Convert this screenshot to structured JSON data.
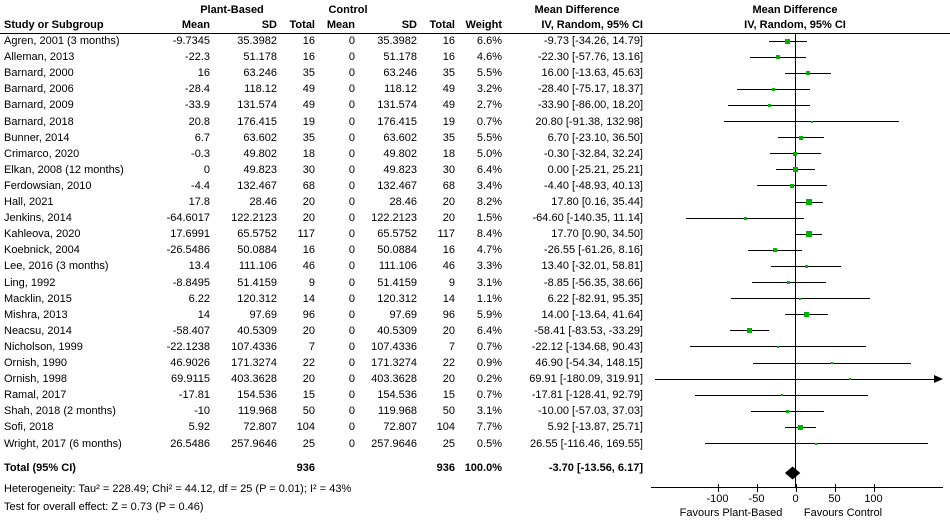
{
  "header": {
    "study_col": "Study or Subgroup",
    "group_plant": "Plant-Based",
    "group_control": "Control",
    "col_mean": "Mean",
    "col_sd": "SD",
    "col_total": "Total",
    "col_weight": "Weight",
    "md_title": "Mean Difference",
    "md_subtitle": "IV, Random, 95% CI"
  },
  "chart_data": {
    "type": "forest",
    "title": "Mean Difference IV, Random, 95% CI",
    "marker_color": "#00b300",
    "diamond_color": "#000000",
    "studies": [
      {
        "name": "Agren, 2001 (3 months)",
        "pb_mean": "-9.7345",
        "pb_sd": "35.3982",
        "pb_total": "16",
        "c_mean": "0",
        "c_sd": "35.3982",
        "c_total": "16",
        "weight": "6.6%",
        "md_label": "-9.73 [-34.26, 14.79]",
        "md": -9.73,
        "lo": -34.26,
        "hi": 14.79,
        "w": 6.6
      },
      {
        "name": "Alleman, 2013",
        "pb_mean": "-22.3",
        "pb_sd": "51.178",
        "pb_total": "16",
        "c_mean": "0",
        "c_sd": "51.178",
        "c_total": "16",
        "weight": "4.6%",
        "md_label": "-22.30 [-57.76, 13.16]",
        "md": -22.3,
        "lo": -57.76,
        "hi": 13.16,
        "w": 4.6
      },
      {
        "name": "Barnard, 2000",
        "pb_mean": "16",
        "pb_sd": "63.246",
        "pb_total": "35",
        "c_mean": "0",
        "c_sd": "63.246",
        "c_total": "35",
        "weight": "5.5%",
        "md_label": "16.00 [-13.63, 45.63]",
        "md": 16.0,
        "lo": -13.63,
        "hi": 45.63,
        "w": 5.5
      },
      {
        "name": "Barnard, 2006",
        "pb_mean": "-28.4",
        "pb_sd": "118.12",
        "pb_total": "49",
        "c_mean": "0",
        "c_sd": "118.12",
        "c_total": "49",
        "weight": "3.2%",
        "md_label": "-28.40 [-75.17, 18.37]",
        "md": -28.4,
        "lo": -75.17,
        "hi": 18.37,
        "w": 3.2
      },
      {
        "name": "Barnard, 2009",
        "pb_mean": "-33.9",
        "pb_sd": "131.574",
        "pb_total": "49",
        "c_mean": "0",
        "c_sd": "131.574",
        "c_total": "49",
        "weight": "2.7%",
        "md_label": "-33.90 [-86.00, 18.20]",
        "md": -33.9,
        "lo": -86.0,
        "hi": 18.2,
        "w": 2.7
      },
      {
        "name": "Barnard, 2018",
        "pb_mean": "20.8",
        "pb_sd": "176.415",
        "pb_total": "19",
        "c_mean": "0",
        "c_sd": "176.415",
        "c_total": "19",
        "weight": "0.7%",
        "md_label": "20.80 [-91.38, 132.98]",
        "md": 20.8,
        "lo": -91.38,
        "hi": 132.98,
        "w": 0.7
      },
      {
        "name": "Bunner, 2014",
        "pb_mean": "6.7",
        "pb_sd": "63.602",
        "pb_total": "35",
        "c_mean": "0",
        "c_sd": "63.602",
        "c_total": "35",
        "weight": "5.5%",
        "md_label": "6.70 [-23.10, 36.50]",
        "md": 6.7,
        "lo": -23.1,
        "hi": 36.5,
        "w": 5.5
      },
      {
        "name": "Crimarco, 2020",
        "pb_mean": "-0.3",
        "pb_sd": "49.802",
        "pb_total": "18",
        "c_mean": "0",
        "c_sd": "49.802",
        "c_total": "18",
        "weight": "5.0%",
        "md_label": "-0.30 [-32.84, 32.24]",
        "md": -0.3,
        "lo": -32.84,
        "hi": 32.24,
        "w": 5.0
      },
      {
        "name": "Elkan, 2008 (12 months)",
        "pb_mean": "0",
        "pb_sd": "49.823",
        "pb_total": "30",
        "c_mean": "0",
        "c_sd": "49.823",
        "c_total": "30",
        "weight": "6.4%",
        "md_label": "0.00 [-25.21, 25.21]",
        "md": 0.0,
        "lo": -25.21,
        "hi": 25.21,
        "w": 6.4
      },
      {
        "name": "Ferdowsian, 2010",
        "pb_mean": "-4.4",
        "pb_sd": "132.467",
        "pb_total": "68",
        "c_mean": "0",
        "c_sd": "132.467",
        "c_total": "68",
        "weight": "3.4%",
        "md_label": "-4.40 [-48.93, 40.13]",
        "md": -4.4,
        "lo": -48.93,
        "hi": 40.13,
        "w": 3.4
      },
      {
        "name": "Hall, 2021",
        "pb_mean": "17.8",
        "pb_sd": "28.46",
        "pb_total": "20",
        "c_mean": "0",
        "c_sd": "28.46",
        "c_total": "20",
        "weight": "8.2%",
        "md_label": "17.80 [0.16, 35.44]",
        "md": 17.8,
        "lo": 0.16,
        "hi": 35.44,
        "w": 8.2
      },
      {
        "name": "Jenkins, 2014",
        "pb_mean": "-64.6017",
        "pb_sd": "122.2123",
        "pb_total": "20",
        "c_mean": "0",
        "c_sd": "122.2123",
        "c_total": "20",
        "weight": "1.5%",
        "md_label": "-64.60 [-140.35, 11.14]",
        "md": -64.6,
        "lo": -140.35,
        "hi": 11.14,
        "w": 1.5
      },
      {
        "name": "Kahleova, 2020",
        "pb_mean": "17.6991",
        "pb_sd": "65.5752",
        "pb_total": "117",
        "c_mean": "0",
        "c_sd": "65.5752",
        "c_total": "117",
        "weight": "8.4%",
        "md_label": "17.70 [0.90, 34.50]",
        "md": 17.7,
        "lo": 0.9,
        "hi": 34.5,
        "w": 8.4
      },
      {
        "name": "Koebnick, 2004",
        "pb_mean": "-26.5486",
        "pb_sd": "50.0884",
        "pb_total": "16",
        "c_mean": "0",
        "c_sd": "50.0884",
        "c_total": "16",
        "weight": "4.7%",
        "md_label": "-26.55 [-61.26, 8.16]",
        "md": -26.55,
        "lo": -61.26,
        "hi": 8.16,
        "w": 4.7
      },
      {
        "name": "Lee, 2016 (3 months)",
        "pb_mean": "13.4",
        "pb_sd": "111.106",
        "pb_total": "46",
        "c_mean": "0",
        "c_sd": "111.106",
        "c_total": "46",
        "weight": "3.3%",
        "md_label": "13.40 [-32.01, 58.81]",
        "md": 13.4,
        "lo": -32.01,
        "hi": 58.81,
        "w": 3.3
      },
      {
        "name": "Ling, 1992",
        "pb_mean": "-8.8495",
        "pb_sd": "51.4159",
        "pb_total": "9",
        "c_mean": "0",
        "c_sd": "51.4159",
        "c_total": "9",
        "weight": "3.1%",
        "md_label": "-8.85 [-56.35, 38.66]",
        "md": -8.85,
        "lo": -56.35,
        "hi": 38.66,
        "w": 3.1
      },
      {
        "name": "Macklin, 2015",
        "pb_mean": "6.22",
        "pb_sd": "120.312",
        "pb_total": "14",
        "c_mean": "0",
        "c_sd": "120.312",
        "c_total": "14",
        "weight": "1.1%",
        "md_label": "6.22 [-82.91, 95.35]",
        "md": 6.22,
        "lo": -82.91,
        "hi": 95.35,
        "w": 1.1
      },
      {
        "name": "Mishra, 2013",
        "pb_mean": "14",
        "pb_sd": "97.69",
        "pb_total": "96",
        "c_mean": "0",
        "c_sd": "97.69",
        "c_total": "96",
        "weight": "5.9%",
        "md_label": "14.00 [-13.64, 41.64]",
        "md": 14.0,
        "lo": -13.64,
        "hi": 41.64,
        "w": 5.9
      },
      {
        "name": "Neacsu, 2014",
        "pb_mean": "-58.407",
        "pb_sd": "40.5309",
        "pb_total": "20",
        "c_mean": "0",
        "c_sd": "40.5309",
        "c_total": "20",
        "weight": "6.4%",
        "md_label": "-58.41 [-83.53, -33.29]",
        "md": -58.41,
        "lo": -83.53,
        "hi": -33.29,
        "w": 6.4
      },
      {
        "name": "Nicholson, 1999",
        "pb_mean": "-22.1238",
        "pb_sd": "107.4336",
        "pb_total": "7",
        "c_mean": "0",
        "c_sd": "107.4336",
        "c_total": "7",
        "weight": "0.7%",
        "md_label": "-22.12 [-134.68, 90.43]",
        "md": -22.12,
        "lo": -134.68,
        "hi": 90.43,
        "w": 0.7
      },
      {
        "name": "Ornish, 1990",
        "pb_mean": "46.9026",
        "pb_sd": "171.3274",
        "pb_total": "22",
        "c_mean": "0",
        "c_sd": "171.3274",
        "c_total": "22",
        "weight": "0.9%",
        "md_label": "46.90 [-54.34, 148.15]",
        "md": 46.9,
        "lo": -54.34,
        "hi": 148.15,
        "w": 0.9
      },
      {
        "name": "Ornish, 1998",
        "pb_mean": "69.9115",
        "pb_sd": "403.3628",
        "pb_total": "20",
        "c_mean": "0",
        "c_sd": "403.3628",
        "c_total": "20",
        "weight": "0.2%",
        "md_label": "69.91 [-180.09, 319.91]",
        "md": 69.91,
        "lo": -180.09,
        "hi": 319.91,
        "w": 0.2
      },
      {
        "name": "Ramal, 2017",
        "pb_mean": "-17.81",
        "pb_sd": "154.536",
        "pb_total": "15",
        "c_mean": "0",
        "c_sd": "154.536",
        "c_total": "15",
        "weight": "0.7%",
        "md_label": "-17.81 [-128.41, 92.79]",
        "md": -17.81,
        "lo": -128.41,
        "hi": 92.79,
        "w": 0.7
      },
      {
        "name": "Shah, 2018 (2 months)",
        "pb_mean": "-10",
        "pb_sd": "119.968",
        "pb_total": "50",
        "c_mean": "0",
        "c_sd": "119.968",
        "c_total": "50",
        "weight": "3.1%",
        "md_label": "-10.00 [-57.03, 37.03]",
        "md": -10.0,
        "lo": -57.03,
        "hi": 37.03,
        "w": 3.1
      },
      {
        "name": "Sofi, 2018",
        "pb_mean": "5.92",
        "pb_sd": "72.807",
        "pb_total": "104",
        "c_mean": "0",
        "c_sd": "72.807",
        "c_total": "104",
        "weight": "7.7%",
        "md_label": "5.92 [-13.87, 25.71]",
        "md": 5.92,
        "lo": -13.87,
        "hi": 25.71,
        "w": 7.7
      },
      {
        "name": "Wright, 2017 (6 months)",
        "pb_mean": "26.5486",
        "pb_sd": "257.9646",
        "pb_total": "25",
        "c_mean": "0",
        "c_sd": "257.9646",
        "c_total": "25",
        "weight": "0.5%",
        "md_label": "26.55 [-116.46, 169.55]",
        "md": 26.55,
        "lo": -116.46,
        "hi": 169.55,
        "w": 0.5
      }
    ],
    "total_row": {
      "label": "Total (95% CI)",
      "pb_total": "936",
      "c_total": "936",
      "weight": "100.0%",
      "md_label": "-3.70 [-13.56, 6.17]",
      "md": -3.7,
      "lo": -13.56,
      "hi": 6.17
    },
    "heterogeneity": "Heterogeneity: Tau² = 228.49; Chi² = 44.12, df = 25 (P = 0.01); I² = 43%",
    "overall_effect": "Test for overall effect: Z = 0.73 (P = 0.46)",
    "axis": {
      "ticks": [
        {
          "v": -100,
          "label": "-100"
        },
        {
          "v": -50,
          "label": "-50"
        },
        {
          "v": 0,
          "label": "0"
        },
        {
          "v": 50,
          "label": "50"
        },
        {
          "v": 100,
          "label": "100"
        }
      ],
      "xmin": -186,
      "xmax": 189
    },
    "favours_left": "Favours Plant-Based",
    "favours_right": "Favours Control"
  }
}
